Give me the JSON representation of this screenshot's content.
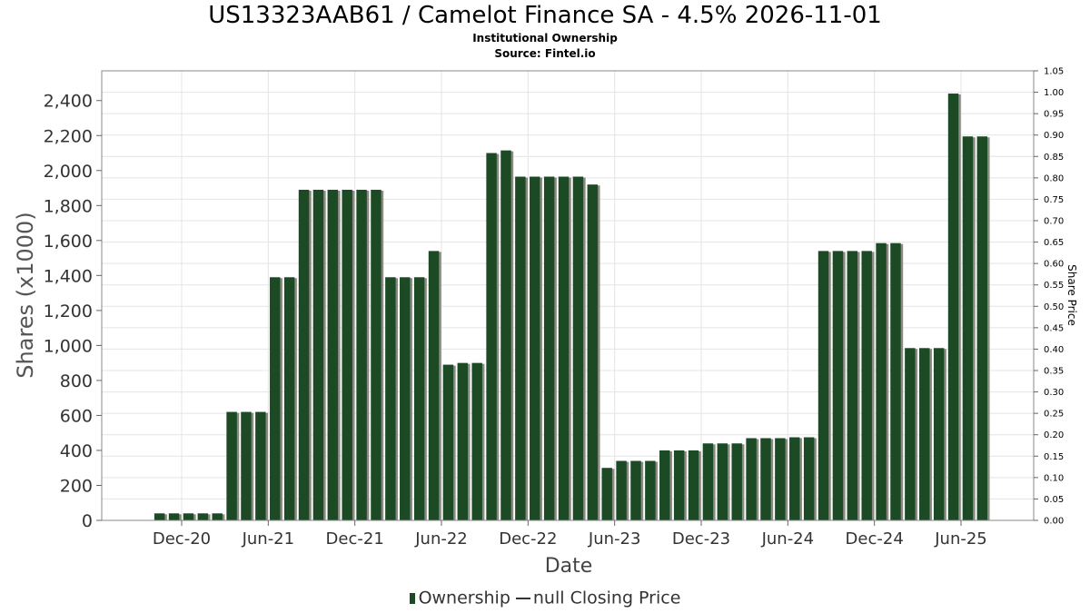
{
  "title": "US13323AAB61 / Camelot Finance SA - 4.5% 2026-11-01",
  "subtitle1": "Institutional Ownership",
  "subtitle2": "Source: Fintel.io",
  "colors": {
    "bar": "#1c4a25",
    "shadow": "#8a8a80",
    "grid": "#e4e4e4",
    "frame": "#888888"
  },
  "chart_data": {
    "type": "bar",
    "title": "US13323AAB61 / Camelot Finance SA - 4.5% 2026-11-01",
    "xlabel": "Date",
    "ylabel": "Shares (x1000)",
    "y2label": "Share Price",
    "ylim": [
      0,
      2570
    ],
    "y2lim": [
      0,
      1.05
    ],
    "grid": true,
    "legend_position": "bottom",
    "yticks": [
      "0",
      "200",
      "400",
      "600",
      "800",
      "1,000",
      "1,200",
      "1,400",
      "1,600",
      "1,800",
      "2,000",
      "2,200",
      "2,400"
    ],
    "ytick_values": [
      0,
      200,
      400,
      600,
      800,
      1000,
      1200,
      1400,
      1600,
      1800,
      2000,
      2200,
      2400
    ],
    "y2ticks": [
      "0.00",
      "0.05",
      "0.10",
      "0.15",
      "0.20",
      "0.25",
      "0.30",
      "0.35",
      "0.40",
      "0.45",
      "0.50",
      "0.55",
      "0.60",
      "0.65",
      "0.70",
      "0.75",
      "0.80",
      "0.85",
      "0.90",
      "0.95",
      "1.00",
      "1.05"
    ],
    "xticks": [
      "Dec-20",
      "Jun-21",
      "Dec-21",
      "Jun-22",
      "Dec-22",
      "Jun-23",
      "Dec-23",
      "Jun-24",
      "Dec-24",
      "Jun-25"
    ],
    "xtick_dates": [
      "2020-12-01",
      "2021-06-01",
      "2021-12-01",
      "2022-06-01",
      "2022-12-01",
      "2023-06-01",
      "2023-12-01",
      "2024-06-01",
      "2024-12-01",
      "2025-06-01"
    ],
    "series": [
      {
        "name": "Ownership",
        "points": [
          {
            "date": "2020-10-15",
            "value": 40
          },
          {
            "date": "2020-11-15",
            "value": 40
          },
          {
            "date": "2020-12-15",
            "value": 40
          },
          {
            "date": "2021-01-15",
            "value": 40
          },
          {
            "date": "2021-02-15",
            "value": 40
          },
          {
            "date": "2021-03-15",
            "value": 620
          },
          {
            "date": "2021-04-15",
            "value": 620
          },
          {
            "date": "2021-05-15",
            "value": 620
          },
          {
            "date": "2021-06-15",
            "value": 1390
          },
          {
            "date": "2021-07-15",
            "value": 1390
          },
          {
            "date": "2021-08-15",
            "value": 1890
          },
          {
            "date": "2021-09-15",
            "value": 1890
          },
          {
            "date": "2021-10-15",
            "value": 1890
          },
          {
            "date": "2021-11-15",
            "value": 1890
          },
          {
            "date": "2021-12-15",
            "value": 1890
          },
          {
            "date": "2022-01-15",
            "value": 1890
          },
          {
            "date": "2022-02-15",
            "value": 1390
          },
          {
            "date": "2022-03-15",
            "value": 1390
          },
          {
            "date": "2022-04-15",
            "value": 1390
          },
          {
            "date": "2022-05-15",
            "value": 1540
          },
          {
            "date": "2022-06-15",
            "value": 890
          },
          {
            "date": "2022-07-15",
            "value": 900
          },
          {
            "date": "2022-08-15",
            "value": 900
          },
          {
            "date": "2022-09-15",
            "value": 2100
          },
          {
            "date": "2022-10-15",
            "value": 2115
          },
          {
            "date": "2022-11-15",
            "value": 1965
          },
          {
            "date": "2022-12-15",
            "value": 1965
          },
          {
            "date": "2023-01-15",
            "value": 1965
          },
          {
            "date": "2023-02-15",
            "value": 1965
          },
          {
            "date": "2023-03-15",
            "value": 1965
          },
          {
            "date": "2023-04-15",
            "value": 1920
          },
          {
            "date": "2023-05-15",
            "value": 300
          },
          {
            "date": "2023-06-15",
            "value": 340
          },
          {
            "date": "2023-07-15",
            "value": 340
          },
          {
            "date": "2023-08-15",
            "value": 340
          },
          {
            "date": "2023-09-15",
            "value": 400
          },
          {
            "date": "2023-10-15",
            "value": 400
          },
          {
            "date": "2023-11-15",
            "value": 400
          },
          {
            "date": "2023-12-15",
            "value": 440
          },
          {
            "date": "2024-01-15",
            "value": 440
          },
          {
            "date": "2024-02-15",
            "value": 440
          },
          {
            "date": "2024-03-15",
            "value": 470
          },
          {
            "date": "2024-04-15",
            "value": 470
          },
          {
            "date": "2024-05-15",
            "value": 470
          },
          {
            "date": "2024-06-15",
            "value": 475
          },
          {
            "date": "2024-07-15",
            "value": 475
          },
          {
            "date": "2024-08-15",
            "value": 1540
          },
          {
            "date": "2024-09-15",
            "value": 1540
          },
          {
            "date": "2024-10-15",
            "value": 1540
          },
          {
            "date": "2024-11-15",
            "value": 1540
          },
          {
            "date": "2024-12-15",
            "value": 1585
          },
          {
            "date": "2025-01-15",
            "value": 1585
          },
          {
            "date": "2025-02-15",
            "value": 985
          },
          {
            "date": "2025-03-15",
            "value": 985
          },
          {
            "date": "2025-04-15",
            "value": 985
          },
          {
            "date": "2025-05-15",
            "value": 2440
          },
          {
            "date": "2025-06-15",
            "value": 2195
          },
          {
            "date": "2025-07-15",
            "value": 2195
          }
        ]
      }
    ],
    "legend": [
      {
        "label": "Ownership",
        "marker": "bar"
      },
      {
        "label": "null Closing Price",
        "marker": "line"
      }
    ]
  }
}
